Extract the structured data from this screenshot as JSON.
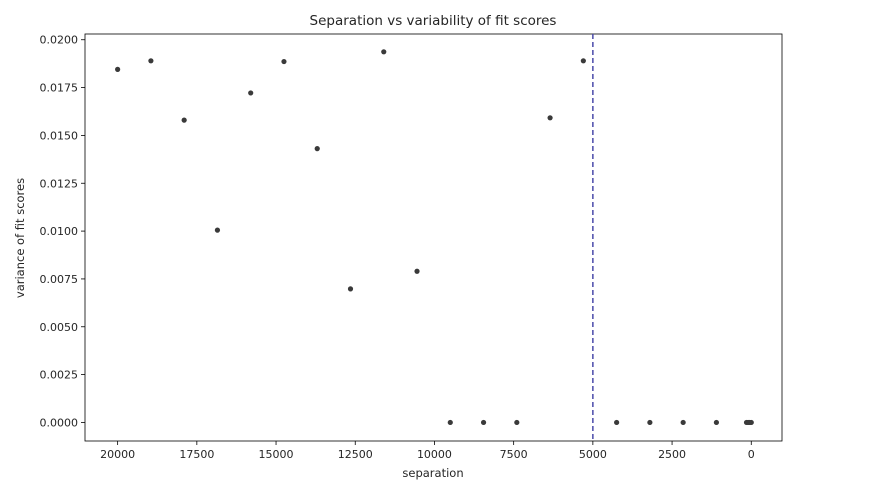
{
  "chart_data": {
    "type": "scatter",
    "title": "Separation vs variability of fit scores",
    "xlabel": "separation",
    "ylabel": "variance of fit scores",
    "x_inverted": true,
    "xlim": [
      21030,
      -970
    ],
    "ylim": [
      -0.00097,
      0.0203
    ],
    "grid": false,
    "xticks": [
      {
        "value": 20000,
        "label": "20000"
      },
      {
        "value": 17500,
        "label": "17500"
      },
      {
        "value": 15000,
        "label": "15000"
      },
      {
        "value": 12500,
        "label": "12500"
      },
      {
        "value": 10000,
        "label": "10000"
      },
      {
        "value": 7500,
        "label": "7500"
      },
      {
        "value": 5000,
        "label": "5000"
      },
      {
        "value": 2500,
        "label": "2500"
      },
      {
        "value": 0,
        "label": "0"
      }
    ],
    "yticks": [
      {
        "value": 0.0,
        "label": "0.0000"
      },
      {
        "value": 0.0025,
        "label": "0.0025"
      },
      {
        "value": 0.005,
        "label": "0.0050"
      },
      {
        "value": 0.0075,
        "label": "0.0075"
      },
      {
        "value": 0.01,
        "label": "0.0100"
      },
      {
        "value": 0.0125,
        "label": "0.0125"
      },
      {
        "value": 0.015,
        "label": "0.0150"
      },
      {
        "value": 0.0175,
        "label": "0.0175"
      },
      {
        "value": 0.02,
        "label": "0.0200"
      }
    ],
    "points": [
      {
        "x": 20000,
        "y": 0.01845
      },
      {
        "x": 18950,
        "y": 0.0189
      },
      {
        "x": 17900,
        "y": 0.0158
      },
      {
        "x": 16850,
        "y": 0.01005
      },
      {
        "x": 15800,
        "y": 0.01722
      },
      {
        "x": 14750,
        "y": 0.01886
      },
      {
        "x": 13700,
        "y": 0.01431
      },
      {
        "x": 12650,
        "y": 0.00698
      },
      {
        "x": 11600,
        "y": 0.01937
      },
      {
        "x": 10550,
        "y": 0.0079
      },
      {
        "x": 9500,
        "y": 0.0
      },
      {
        "x": 8450,
        "y": 0.0
      },
      {
        "x": 7400,
        "y": 0.0
      },
      {
        "x": 6350,
        "y": 0.01592
      },
      {
        "x": 5300,
        "y": 0.0189
      },
      {
        "x": 4250,
        "y": 0.0
      },
      {
        "x": 3200,
        "y": 0.0
      },
      {
        "x": 2150,
        "y": 0.0
      },
      {
        "x": 1100,
        "y": 0.0
      },
      {
        "x": 150,
        "y": 0.0
      },
      {
        "x": 100,
        "y": 0.0
      },
      {
        "x": 50,
        "y": 0.0
      },
      {
        "x": 0,
        "y": 0.0
      }
    ],
    "point_color": "#3a3a3a",
    "vline": {
      "x": 5000,
      "color": "#4a4aaa",
      "style": "dashed"
    }
  }
}
